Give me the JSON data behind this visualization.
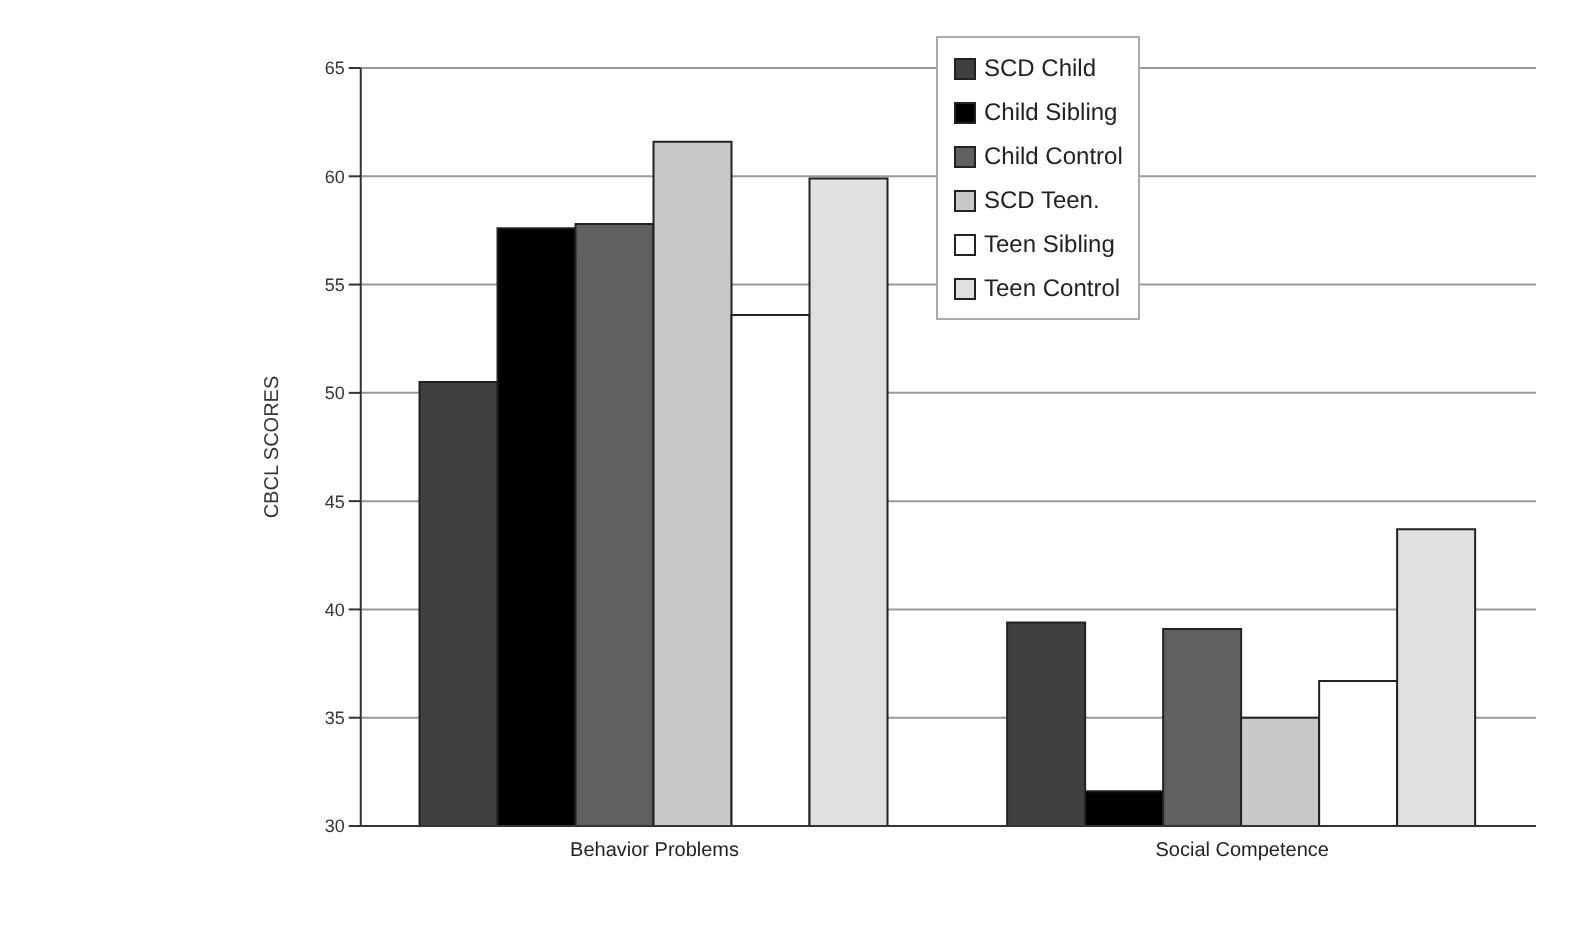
{
  "chart_data": {
    "type": "bar",
    "ylabel": "CBCL SCORES",
    "categories": [
      "Behavior Problems",
      "Social Competence"
    ],
    "series": [
      {
        "name": "SCD Child",
        "color": "#404040",
        "values": [
          50.5,
          39.4
        ]
      },
      {
        "name": "Child Sibling",
        "color": "#000000",
        "values": [
          57.6,
          31.6
        ]
      },
      {
        "name": "Child Control",
        "color": "#606060",
        "values": [
          57.8,
          39.1
        ]
      },
      {
        "name": "SCD Teen.",
        "color": "#c8c8c8",
        "values": [
          61.6,
          35.0
        ]
      },
      {
        "name": "Teen Sibling",
        "color": "#ffffff",
        "values": [
          53.6,
          36.7
        ]
      },
      {
        "name": "Teen Control",
        "color": "#e0e0e0",
        "values": [
          59.9,
          43.7
        ]
      }
    ],
    "ylim": [
      30,
      65
    ],
    "yticks": [
      30,
      35,
      40,
      45,
      50,
      55,
      60,
      65
    ],
    "grid": "y",
    "legend": "top right"
  }
}
